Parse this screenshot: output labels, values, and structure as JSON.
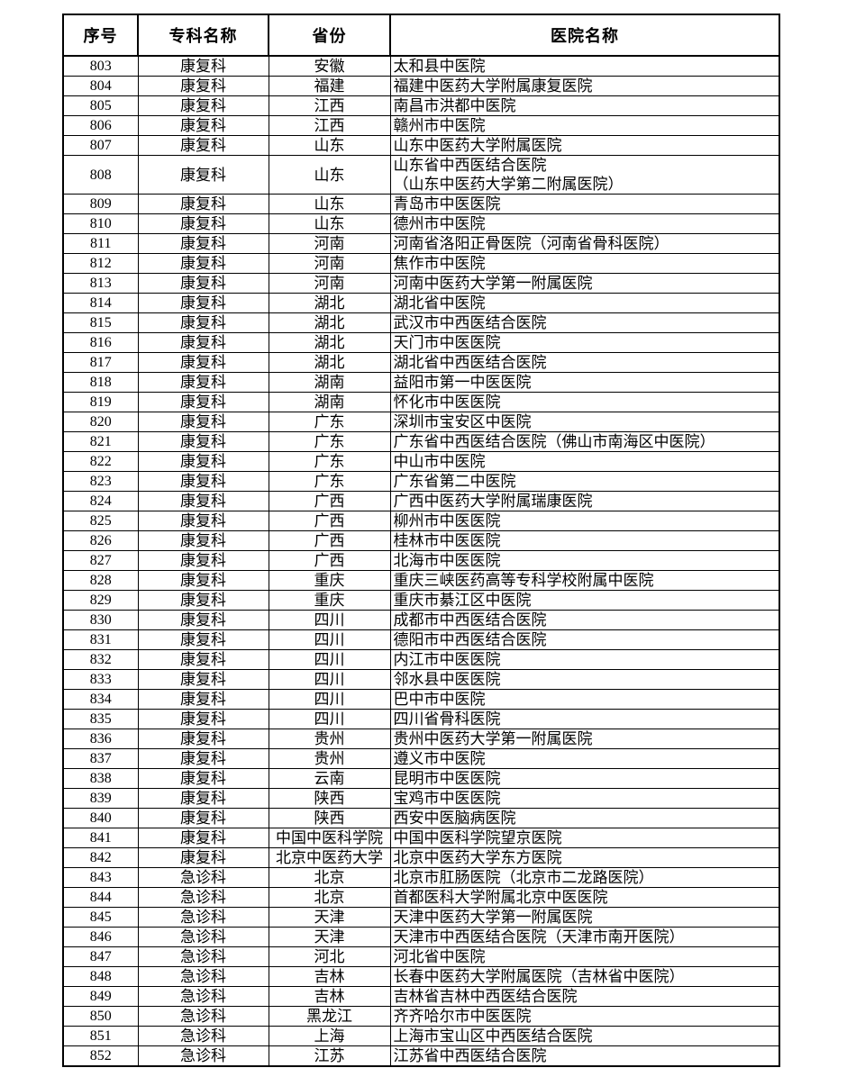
{
  "colors": {
    "background": "#ffffff",
    "text": "#000000",
    "border": "#000000"
  },
  "table": {
    "columns": [
      {
        "key": "seq",
        "label": "序号"
      },
      {
        "key": "specialty",
        "label": "专科名称"
      },
      {
        "key": "province",
        "label": "省份"
      },
      {
        "key": "hospital",
        "label": "医院名称"
      }
    ],
    "rows": [
      {
        "seq": "803",
        "specialty": "康复科",
        "province": "安徽",
        "hospital": "太和县中医院"
      },
      {
        "seq": "804",
        "specialty": "康复科",
        "province": "福建",
        "hospital": "福建中医药大学附属康复医院"
      },
      {
        "seq": "805",
        "specialty": "康复科",
        "province": "江西",
        "hospital": "南昌市洪都中医院"
      },
      {
        "seq": "806",
        "specialty": "康复科",
        "province": "江西",
        "hospital": "赣州市中医院"
      },
      {
        "seq": "807",
        "specialty": "康复科",
        "province": "山东",
        "hospital": "山东中医药大学附属医院"
      },
      {
        "seq": "808",
        "specialty": "康复科",
        "province": "山东",
        "hospital": "山东省中西医结合医院\n（山东中医药大学第二附属医院）"
      },
      {
        "seq": "809",
        "specialty": "康复科",
        "province": "山东",
        "hospital": "青岛市中医医院"
      },
      {
        "seq": "810",
        "specialty": "康复科",
        "province": "山东",
        "hospital": "德州市中医院"
      },
      {
        "seq": "811",
        "specialty": "康复科",
        "province": "河南",
        "hospital": "河南省洛阳正骨医院（河南省骨科医院）"
      },
      {
        "seq": "812",
        "specialty": "康复科",
        "province": "河南",
        "hospital": "焦作市中医院"
      },
      {
        "seq": "813",
        "specialty": "康复科",
        "province": "河南",
        "hospital": "河南中医药大学第一附属医院"
      },
      {
        "seq": "814",
        "specialty": "康复科",
        "province": "湖北",
        "hospital": "湖北省中医院"
      },
      {
        "seq": "815",
        "specialty": "康复科",
        "province": "湖北",
        "hospital": "武汉市中西医结合医院"
      },
      {
        "seq": "816",
        "specialty": "康复科",
        "province": "湖北",
        "hospital": "天门市中医医院"
      },
      {
        "seq": "817",
        "specialty": "康复科",
        "province": "湖北",
        "hospital": "湖北省中西医结合医院"
      },
      {
        "seq": "818",
        "specialty": "康复科",
        "province": "湖南",
        "hospital": "益阳市第一中医医院"
      },
      {
        "seq": "819",
        "specialty": "康复科",
        "province": "湖南",
        "hospital": "怀化市中医医院"
      },
      {
        "seq": "820",
        "specialty": "康复科",
        "province": "广东",
        "hospital": "深圳市宝安区中医院"
      },
      {
        "seq": "821",
        "specialty": "康复科",
        "province": "广东",
        "hospital": "广东省中西医结合医院（佛山市南海区中医院）"
      },
      {
        "seq": "822",
        "specialty": "康复科",
        "province": "广东",
        "hospital": "中山市中医院"
      },
      {
        "seq": "823",
        "specialty": "康复科",
        "province": "广东",
        "hospital": "广东省第二中医院"
      },
      {
        "seq": "824",
        "specialty": "康复科",
        "province": "广西",
        "hospital": "广西中医药大学附属瑞康医院"
      },
      {
        "seq": "825",
        "specialty": "康复科",
        "province": "广西",
        "hospital": "柳州市中医医院"
      },
      {
        "seq": "826",
        "specialty": "康复科",
        "province": "广西",
        "hospital": "桂林市中医医院"
      },
      {
        "seq": "827",
        "specialty": "康复科",
        "province": "广西",
        "hospital": "北海市中医医院"
      },
      {
        "seq": "828",
        "specialty": "康复科",
        "province": "重庆",
        "hospital": "重庆三峡医药高等专科学校附属中医院"
      },
      {
        "seq": "829",
        "specialty": "康复科",
        "province": "重庆",
        "hospital": "重庆市綦江区中医院"
      },
      {
        "seq": "830",
        "specialty": "康复科",
        "province": "四川",
        "hospital": "成都市中西医结合医院"
      },
      {
        "seq": "831",
        "specialty": "康复科",
        "province": "四川",
        "hospital": "德阳市中西医结合医院"
      },
      {
        "seq": "832",
        "specialty": "康复科",
        "province": "四川",
        "hospital": "内江市中医医院"
      },
      {
        "seq": "833",
        "specialty": "康复科",
        "province": "四川",
        "hospital": "邻水县中医医院"
      },
      {
        "seq": "834",
        "specialty": "康复科",
        "province": "四川",
        "hospital": "巴中市中医院"
      },
      {
        "seq": "835",
        "specialty": "康复科",
        "province": "四川",
        "hospital": "四川省骨科医院"
      },
      {
        "seq": "836",
        "specialty": "康复科",
        "province": "贵州",
        "hospital": "贵州中医药大学第一附属医院"
      },
      {
        "seq": "837",
        "specialty": "康复科",
        "province": "贵州",
        "hospital": "遵义市中医院"
      },
      {
        "seq": "838",
        "specialty": "康复科",
        "province": "云南",
        "hospital": "昆明市中医医院"
      },
      {
        "seq": "839",
        "specialty": "康复科",
        "province": "陕西",
        "hospital": "宝鸡市中医医院"
      },
      {
        "seq": "840",
        "specialty": "康复科",
        "province": "陕西",
        "hospital": "西安中医脑病医院"
      },
      {
        "seq": "841",
        "specialty": "康复科",
        "province": "中国中医科学院",
        "hospital": "中国中医科学院望京医院"
      },
      {
        "seq": "842",
        "specialty": "康复科",
        "province": "北京中医药大学",
        "hospital": "北京中医药大学东方医院"
      },
      {
        "seq": "843",
        "specialty": "急诊科",
        "province": "北京",
        "hospital": "北京市肛肠医院（北京市二龙路医院）"
      },
      {
        "seq": "844",
        "specialty": "急诊科",
        "province": "北京",
        "hospital": "首都医科大学附属北京中医医院"
      },
      {
        "seq": "845",
        "specialty": "急诊科",
        "province": "天津",
        "hospital": "天津中医药大学第一附属医院"
      },
      {
        "seq": "846",
        "specialty": "急诊科",
        "province": "天津",
        "hospital": "天津市中西医结合医院（天津市南开医院）"
      },
      {
        "seq": "847",
        "specialty": "急诊科",
        "province": "河北",
        "hospital": "河北省中医院"
      },
      {
        "seq": "848",
        "specialty": "急诊科",
        "province": "吉林",
        "hospital": "长春中医药大学附属医院（吉林省中医院）"
      },
      {
        "seq": "849",
        "specialty": "急诊科",
        "province": "吉林",
        "hospital": "吉林省吉林中西医结合医院"
      },
      {
        "seq": "850",
        "specialty": "急诊科",
        "province": "黑龙江",
        "hospital": "齐齐哈尔市中医医院"
      },
      {
        "seq": "851",
        "specialty": "急诊科",
        "province": "上海",
        "hospital": "上海市宝山区中西医结合医院"
      },
      {
        "seq": "852",
        "specialty": "急诊科",
        "province": "江苏",
        "hospital": "江苏省中西医结合医院"
      }
    ]
  }
}
